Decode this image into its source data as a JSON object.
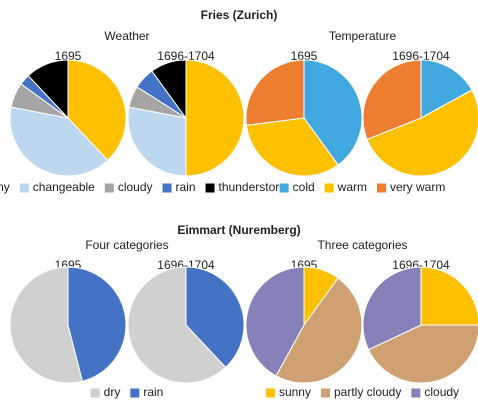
{
  "chart_data": [
    {
      "type": "pie",
      "heading": "Fries (Zurich)",
      "title": "Weather",
      "categories": [
        "sunny",
        "changeable",
        "cloudy",
        "rain",
        "thunderstorm"
      ],
      "colors": [
        "#ffc000",
        "#bdd7ee",
        "#a5a5a5",
        "#4472c4",
        "#000000"
      ],
      "pies": [
        {
          "title": "1695",
          "values": [
            38,
            40,
            7,
            3,
            12
          ]
        },
        {
          "title": "1696-1704",
          "values": [
            50,
            28,
            6,
            6,
            10
          ]
        }
      ]
    },
    {
      "type": "pie",
      "title": "Temperature",
      "categories": [
        "cold",
        "warm",
        "very warm"
      ],
      "colors": [
        "#41a9df",
        "#ffc000",
        "#ed7d31"
      ],
      "pies": [
        {
          "title": "1695",
          "values": [
            40,
            33,
            27
          ]
        },
        {
          "title": "1696-1704",
          "values": [
            17,
            52,
            31
          ]
        }
      ]
    },
    {
      "type": "pie",
      "heading": "Eimmart (Nuremberg)",
      "title": "Four categories",
      "counterclock": true,
      "categories": [
        "dry",
        "rain"
      ],
      "colors": [
        "#d0d0d0",
        "#4472c4"
      ],
      "pies": [
        {
          "title": "1695",
          "values": [
            54,
            46
          ]
        },
        {
          "title": "1696-1704",
          "values": [
            62,
            38
          ]
        }
      ]
    },
    {
      "type": "pie",
      "title": "Three categories",
      "categories": [
        "sunny",
        "partly cloudy",
        "cloudy"
      ],
      "colors": [
        "#ffc000",
        "#cfa072",
        "#8681b8"
      ],
      "pies": [
        {
          "title": "1695",
          "values": [
            10,
            48,
            42
          ]
        },
        {
          "title": "1696-1704",
          "values": [
            25,
            43,
            32
          ]
        }
      ]
    }
  ]
}
